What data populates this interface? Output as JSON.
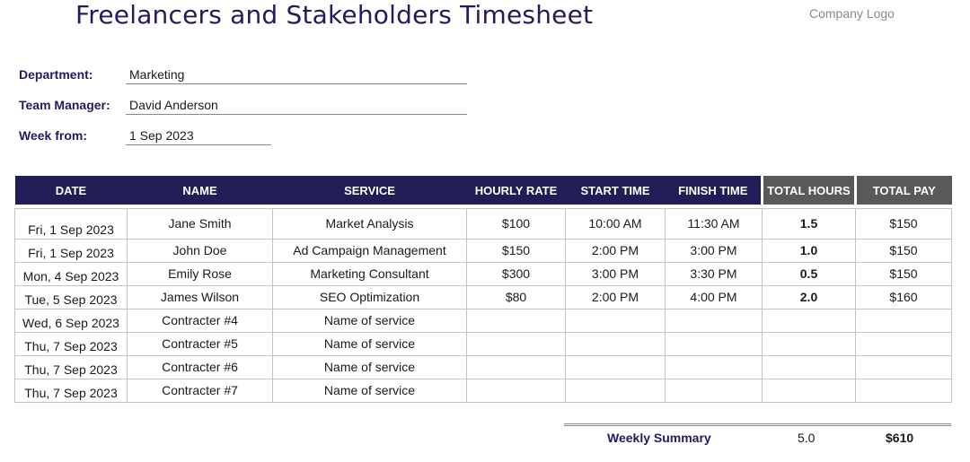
{
  "header": {
    "title": "Freelancers and Stakeholders Timesheet",
    "logo_text": "Company Logo"
  },
  "fields": {
    "department": {
      "label": "Department:",
      "value": "Marketing"
    },
    "team_manager": {
      "label": "Team Manager:",
      "value": "David Anderson"
    },
    "week_from": {
      "label": "Week from:",
      "value": "1 Sep 2023"
    }
  },
  "table": {
    "columns": [
      "DATE",
      "NAME",
      "SERVICE",
      "HOURLY RATE",
      "START TIME",
      "FINISH TIME",
      "TOTAL HOURS",
      "TOTAL PAY"
    ],
    "rows": [
      {
        "date": "Fri, 1 Sep 2023",
        "name": "Jane Smith",
        "service": "Market Analysis",
        "rate": "$100",
        "start": "10:00 AM",
        "finish": "11:30 AM",
        "hours": "1.5",
        "pay": "$150"
      },
      {
        "date": "Fri, 1 Sep 2023",
        "name": "John Doe",
        "service": "Ad Campaign Management",
        "rate": "$150",
        "start": "2:00 PM",
        "finish": "3:00 PM",
        "hours": "1.0",
        "pay": "$150"
      },
      {
        "date": "Mon, 4 Sep 2023",
        "name": "Emily Rose",
        "service": "Marketing Consultant",
        "rate": "$300",
        "start": "3:00 PM",
        "finish": "3:30 PM",
        "hours": "0.5",
        "pay": "$150"
      },
      {
        "date": "Tue, 5 Sep 2023",
        "name": "James Wilson",
        "service": "SEO Optimization",
        "rate": "$80",
        "start": "2:00 PM",
        "finish": "4:00 PM",
        "hours": "2.0",
        "pay": "$160"
      },
      {
        "date": "Wed, 6 Sep 2023",
        "name": "Contracter #4",
        "service": "Name of service",
        "rate": "",
        "start": "",
        "finish": "",
        "hours": "",
        "pay": ""
      },
      {
        "date": "Thu, 7 Sep 2023",
        "name": "Contracter #5",
        "service": "Name of service",
        "rate": "",
        "start": "",
        "finish": "",
        "hours": "",
        "pay": ""
      },
      {
        "date": "Thu, 7 Sep 2023",
        "name": "Contracter #6",
        "service": "Name of service",
        "rate": "",
        "start": "",
        "finish": "",
        "hours": "",
        "pay": ""
      },
      {
        "date": "Thu, 7 Sep 2023",
        "name": "Contracter #7",
        "service": "Name of service",
        "rate": "",
        "start": "",
        "finish": "",
        "hours": "",
        "pay": ""
      }
    ]
  },
  "summary": {
    "label": "Weekly Summary",
    "total_hours": "5.0",
    "total_pay": "$610"
  },
  "colors": {
    "header_navy": "#221c57",
    "header_gray": "#595959",
    "title": "#231b5e"
  }
}
